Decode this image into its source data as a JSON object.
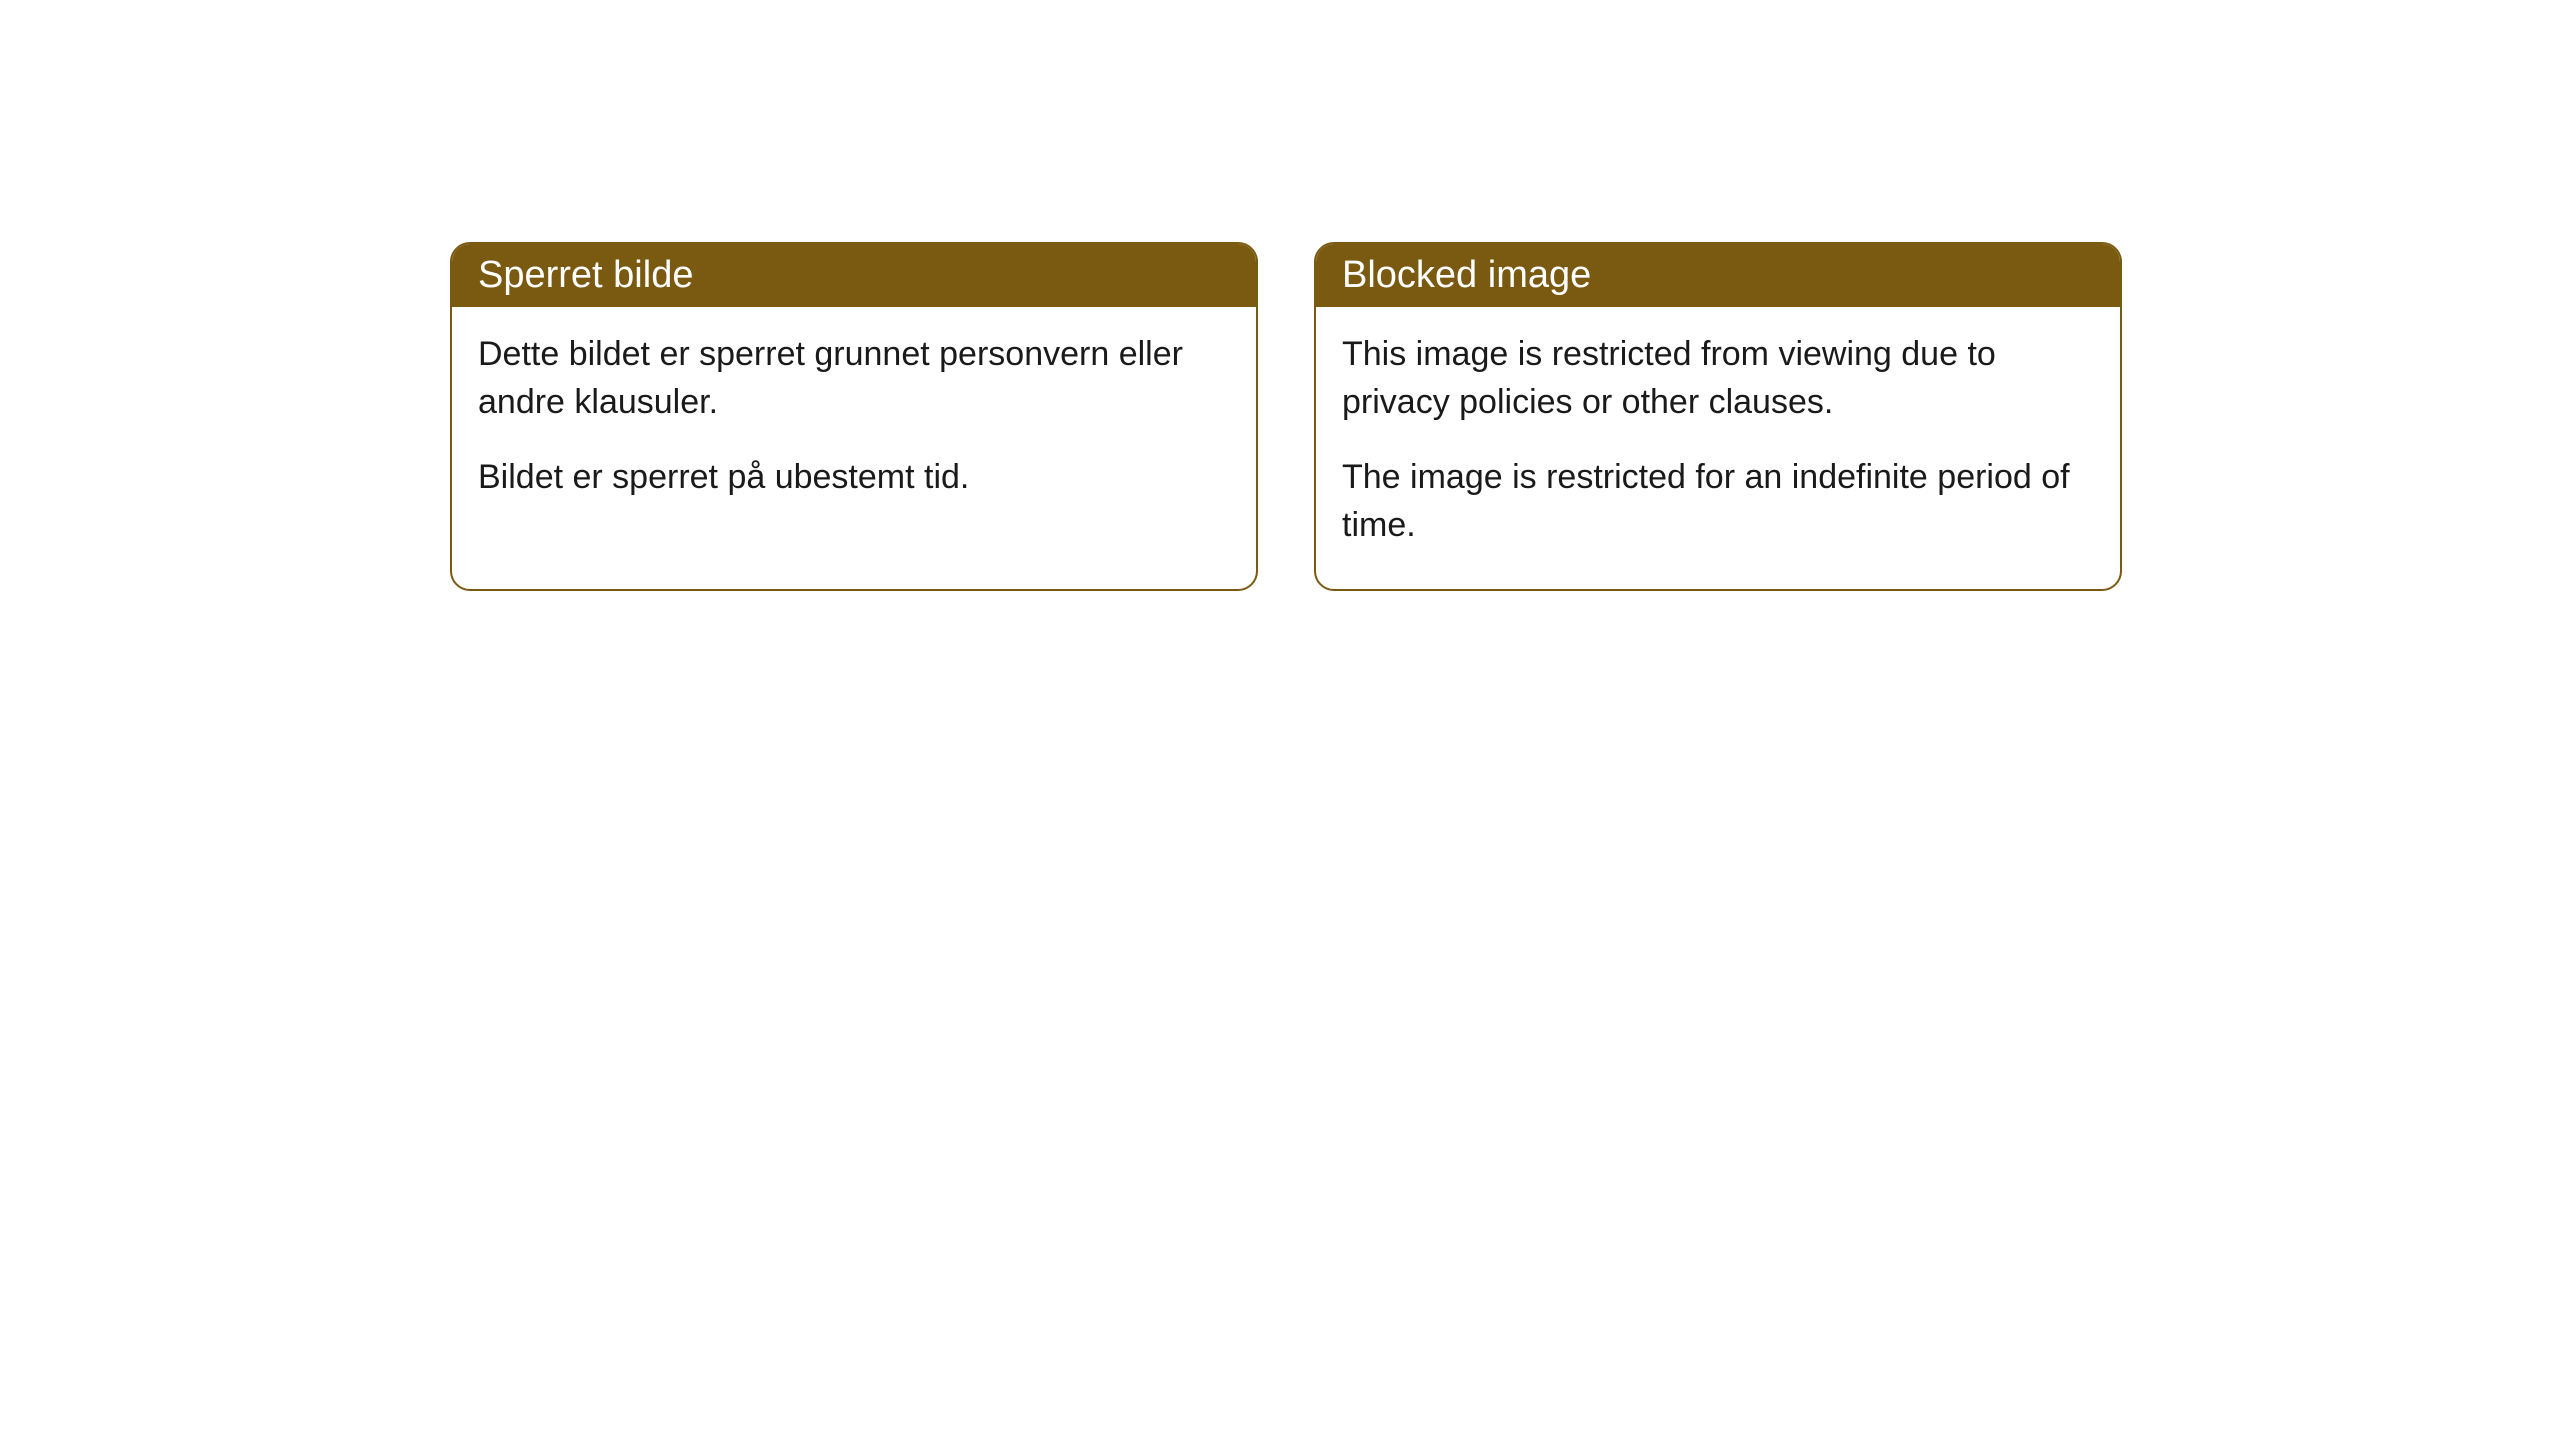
{
  "cards": [
    {
      "title": "Sperret bilde",
      "paragraph1": "Dette bildet er sperret grunnet personvern eller andre klausuler.",
      "paragraph2": "Bildet er sperret på ubestemt tid."
    },
    {
      "title": "Blocked image",
      "paragraph1": "This image is restricted from viewing due to privacy policies or other clauses.",
      "paragraph2": "The image is restricted for an indefinite period of time."
    }
  ],
  "styling": {
    "header_bg": "#7a5a10",
    "header_text_color": "#ffffff",
    "border_color": "#7a5a10",
    "body_bg": "#ffffff",
    "body_text_color": "#1a1a1a",
    "border_radius": 20,
    "header_fontsize": 38,
    "body_fontsize": 34
  }
}
